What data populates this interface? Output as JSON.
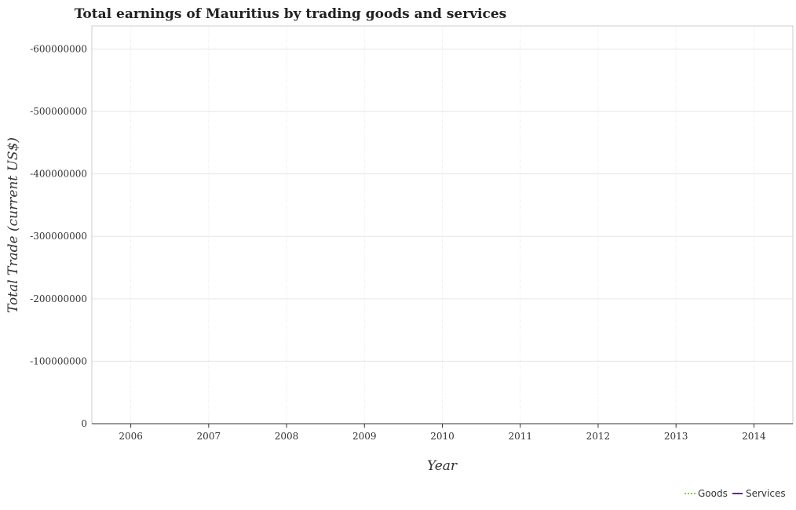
{
  "chart_data": {
    "type": "line",
    "title": "Total earnings of Mauritius by trading goods and services",
    "xlabel": "Year",
    "ylabel": "Total Trade (current US$)",
    "categories": [
      "2006",
      "2007",
      "2008",
      "2009",
      "2010",
      "2011",
      "2012",
      "2013",
      "2014"
    ],
    "y_ticks": [
      0,
      -100000000,
      -200000000,
      -300000000,
      -400000000,
      -500000000,
      -600000000
    ],
    "y_tick_labels": [
      "0",
      "-100000000",
      "-200000000",
      "-300000000",
      "-400000000",
      "-500000000",
      "-600000000"
    ],
    "ylim": [
      0,
      -637000000
    ],
    "grid": true,
    "legend_position": "bottom-right",
    "series": [
      {
        "name": "Goods",
        "color": "#7dd43b",
        "style": "dashed",
        "values": [
          0,
          0,
          0,
          0,
          0,
          0,
          0,
          0,
          0
        ]
      },
      {
        "name": "Services",
        "color": "#5b2d8e",
        "style": "solid",
        "values": [
          0,
          0,
          0,
          0,
          0,
          0,
          0,
          0,
          0
        ]
      }
    ]
  }
}
